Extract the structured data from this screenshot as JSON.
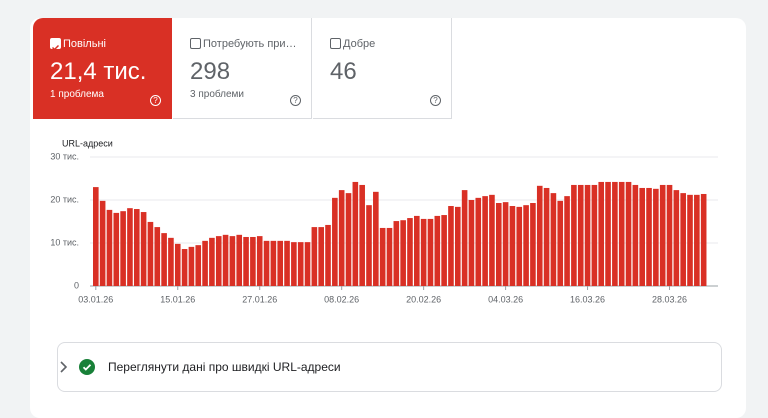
{
  "tabs": [
    {
      "label": "Повільні",
      "value": "21,4 тис.",
      "subtitle": "1 проблема",
      "selected": true
    },
    {
      "label": "Потребують при…",
      "value": "298",
      "subtitle": "3 проблеми",
      "selected": false
    },
    {
      "label": "Добре",
      "value": "46",
      "subtitle": "",
      "selected": false
    }
  ],
  "chart_data": {
    "type": "bar",
    "y_label": "URL-адреси",
    "color": "#d93025",
    "grid": true,
    "categories": [
      "03.01.26",
      null,
      null,
      null,
      null,
      null,
      null,
      null,
      null,
      null,
      null,
      null,
      "15.01.26",
      null,
      null,
      null,
      null,
      null,
      null,
      null,
      null,
      null,
      null,
      null,
      "27.01.26",
      null,
      null,
      null,
      null,
      null,
      null,
      null,
      null,
      null,
      null,
      null,
      "08.02.26",
      null,
      null,
      null,
      null,
      null,
      null,
      null,
      null,
      null,
      null,
      null,
      "20.02.26",
      null,
      null,
      null,
      null,
      null,
      null,
      null,
      null,
      null,
      null,
      null,
      "04.03.26",
      null,
      null,
      null,
      null,
      null,
      null,
      null,
      null,
      null,
      null,
      null,
      "16.03.26",
      null,
      null,
      null,
      null,
      null,
      null,
      null,
      null,
      null,
      null,
      null,
      "28.03.26",
      null,
      null,
      null,
      null,
      null
    ],
    "values": [
      23000,
      19800,
      17700,
      17000,
      17400,
      18100,
      17900,
      17200,
      14900,
      13700,
      12300,
      11200,
      9800,
      8600,
      9100,
      9500,
      10500,
      11200,
      11600,
      11900,
      11600,
      11900,
      11400,
      11400,
      11600,
      10500,
      10500,
      10500,
      10500,
      10200,
      10200,
      10200,
      13700,
      13700,
      14200,
      20500,
      22300,
      21600,
      24200,
      23500,
      18800,
      21900,
      13500,
      13500,
      15100,
      15300,
      15800,
      16300,
      15600,
      15600,
      16300,
      16500,
      18600,
      18400,
      22300,
      20000,
      20500,
      20900,
      21200,
      19300,
      19500,
      18600,
      18400,
      18800,
      19300,
      23300,
      22800,
      21600,
      19800,
      20900,
      23500,
      23500,
      23500,
      23500,
      24200,
      24200,
      24200,
      24200,
      24200,
      23500,
      22800,
      22800,
      22600,
      23500,
      23500,
      22300,
      21600,
      21200,
      21200,
      21400
    ],
    "ylim": [
      0,
      30000
    ],
    "yticks": [
      0,
      {
        "value": 10000,
        "label": "10 тис."
      },
      {
        "value": 20000,
        "label": "20 тис."
      },
      {
        "value": 30000,
        "label": "30 тис."
      }
    ]
  },
  "link": {
    "text": "Переглянути дані про швидкі URL-адреси"
  }
}
